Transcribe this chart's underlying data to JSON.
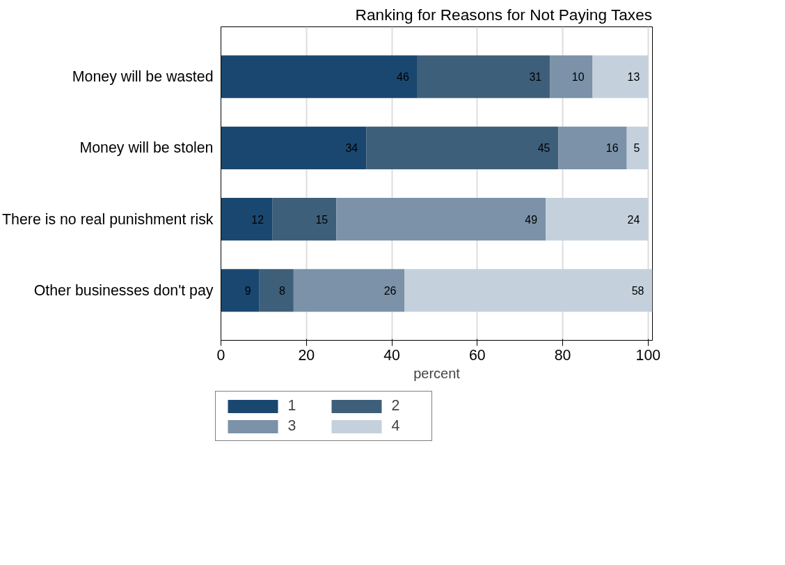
{
  "chart_data": {
    "type": "bar",
    "orientation": "horizontal",
    "stacked": true,
    "title": "Ranking for Reasons for Not Paying Taxes",
    "xlabel": "percent",
    "categories": [
      "Money will be wasted",
      "Money will be stolen",
      "There is no real punishment risk",
      "Other businesses don't pay"
    ],
    "series": [
      {
        "name": "1",
        "color": "#1a476f",
        "values": [
          46,
          34,
          12,
          9
        ]
      },
      {
        "name": "2",
        "color": "#3e5f7a",
        "values": [
          31,
          45,
          15,
          8
        ]
      },
      {
        "name": "3",
        "color": "#7b92a8",
        "values": [
          10,
          16,
          49,
          26
        ]
      },
      {
        "name": "4",
        "color": "#c4d1dd",
        "values": [
          13,
          5,
          24,
          58
        ]
      }
    ],
    "xlim": [
      0,
      101
    ],
    "xticks": [
      0,
      20,
      40,
      60,
      80,
      100
    ],
    "grid": "x",
    "legend": "bottom",
    "data_labels": true
  }
}
